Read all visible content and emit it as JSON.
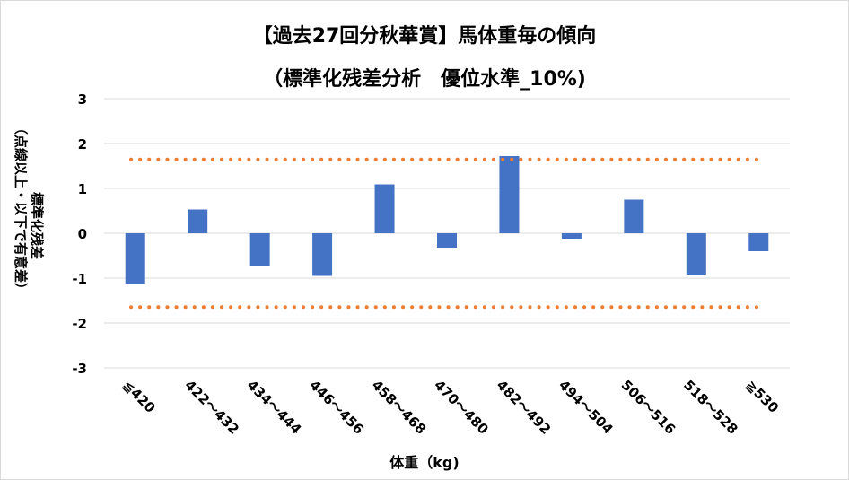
{
  "chart_data": {
    "type": "bar",
    "title": "【過去27回分秋華賞】馬体重毎の傾向",
    "subtitle": "（標準化残差分析　優位水準_10%)",
    "xlabel": "体重（kg)",
    "ylabel_line1": "標準化残差",
    "ylabel_line2": "（点線以上・以下で有意差）",
    "categories": [
      "≦420",
      "422～432",
      "434～444",
      "446～456",
      "458～468",
      "470～480",
      "482～492",
      "494～504",
      "506～516",
      "518～528",
      "≧530"
    ],
    "values": [
      -1.12,
      0.53,
      -0.72,
      -0.95,
      1.09,
      -0.32,
      1.72,
      -0.12,
      0.75,
      -0.92,
      -0.4
    ],
    "yticks": [
      "3",
      "2",
      "1",
      "0",
      "-1",
      "-2",
      "-3"
    ],
    "ylim": [
      -3,
      3
    ],
    "threshold_lines": [
      1.645,
      -1.645
    ],
    "grid": true,
    "colors": {
      "bar": "#4472C4",
      "threshold": "#ED7D31",
      "grid": "#d9d9d9"
    }
  }
}
